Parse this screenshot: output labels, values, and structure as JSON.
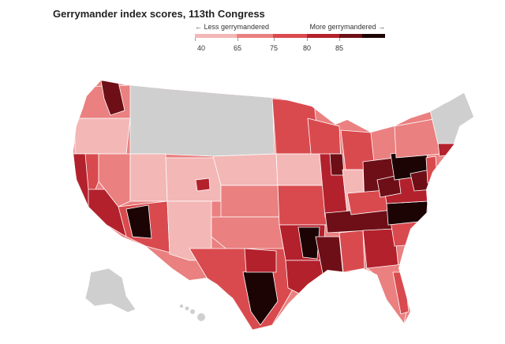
{
  "title": "Gerrymander index scores, 113th Congress",
  "legend": {
    "less_label": "← Less gerrymandered",
    "more_label": "More gerrymandered →",
    "ticks": [
      "40",
      "65",
      "75",
      "80",
      "85"
    ],
    "colors": [
      "#f3b7b6",
      "#ea8080",
      "#d94a4e",
      "#b3212c",
      "#6e0f17",
      "#1c0405"
    ]
  },
  "colors": {
    "no_data": "#cfcfcf",
    "border": "#ffffff"
  }
}
